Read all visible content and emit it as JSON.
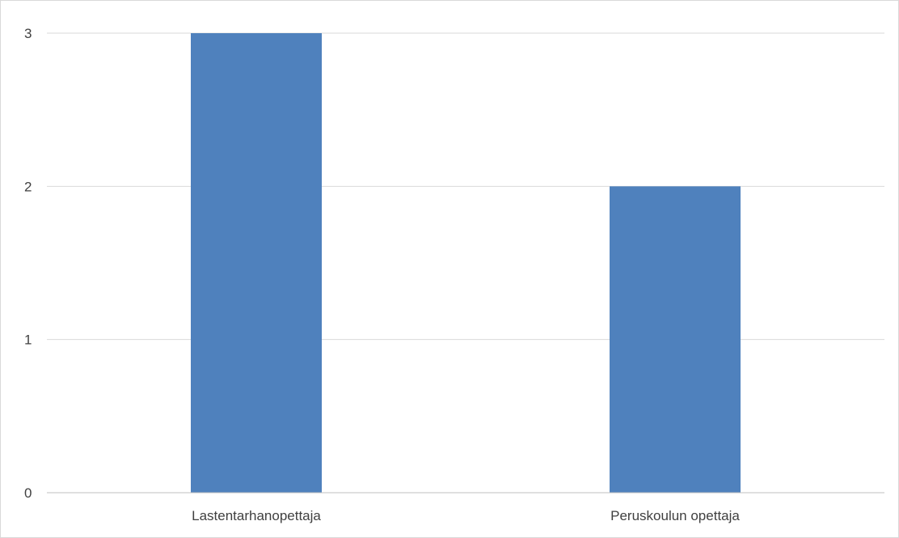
{
  "chart_data": {
    "type": "bar",
    "title": "",
    "xlabel": "",
    "ylabel": "",
    "categories": [
      "Lastentarhanopettaja",
      "Peruskoulun opettaja"
    ],
    "values": [
      3,
      2
    ],
    "ylim": [
      0,
      3
    ],
    "yticks": [
      "0",
      "1",
      "2",
      "3"
    ],
    "grid": true,
    "legend": "none",
    "bar_color": "#4F81BD",
    "grid_color": "#d9d9d9",
    "axis_color": "#bfbfbf",
    "text_color": "#404040"
  }
}
